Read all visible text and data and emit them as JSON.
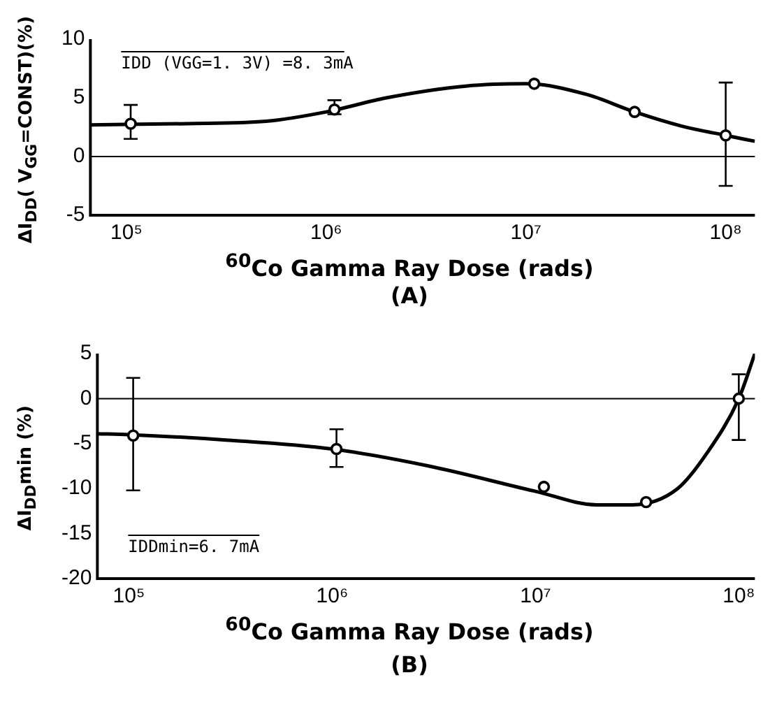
{
  "chart_data": [
    {
      "type": "scatter",
      "ylabel": "ΔI$_{DD}$( V$_{GG}$=CONST)(%)",
      "xlabel": "$^{60}$Co Gamma Ray Dose (rads)",
      "log": "x",
      "grid": false,
      "legend": false,
      "xlim": [
        66000,
        140000000
      ],
      "xticks": [
        {
          "value": 100000,
          "label": "10⁵"
        },
        {
          "value": 1000000,
          "label": "10⁶"
        },
        {
          "value": 10000000,
          "label": "10⁷"
        },
        {
          "value": 100000000,
          "label": "10⁸"
        }
      ],
      "ylim": [
        -5,
        10
      ],
      "yticks": [
        -5,
        0,
        5,
        10
      ],
      "ref_lines": [
        {
          "axis": "y",
          "value": 0,
          "color": "#000000"
        }
      ],
      "annotations": [
        "IDD (VGG=1. 3V) =8. 3mA",
        "(A)"
      ],
      "series": [
        {
          "type": "scatter",
          "color": "#000000",
          "marker": "circle",
          "x": [
            105000,
            1100000,
            11000000,
            35000000,
            100000000
          ],
          "values": [
            2.8,
            4.0,
            6.2,
            3.8,
            1.8
          ],
          "errors": [
            [
              1.5,
              4.4
            ],
            [
              3.6,
              4.8
            ],
            null,
            null,
            [
              -2.5,
              6.3
            ]
          ]
        },
        {
          "type": "line",
          "color": "#000000",
          "marker": "none",
          "line_style": "solid",
          "x": [
            66000,
            200000,
            500000,
            1000000,
            2000000,
            5000000,
            10000000,
            20000000,
            35000000,
            60000000,
            100000000,
            140000000
          ],
          "values": [
            2.7,
            2.8,
            3.0,
            3.8,
            5.0,
            6.0,
            6.2,
            5.3,
            3.8,
            2.6,
            1.8,
            1.3
          ]
        }
      ]
    },
    {
      "type": "scatter",
      "ylabel": "ΔI$_{DD}$min (%)",
      "xlabel": "$^{60}$Co Gamma Ray Dose (rads)",
      "log": "x",
      "grid": false,
      "legend": false,
      "xlim": [
        70000,
        120000000
      ],
      "xticks": [
        {
          "value": 100000,
          "label": "10⁵"
        },
        {
          "value": 1000000,
          "label": "10⁶"
        },
        {
          "value": 10000000,
          "label": "10⁷"
        },
        {
          "value": 100000000,
          "label": "10⁸"
        }
      ],
      "ylim": [
        -20,
        5
      ],
      "yticks": [
        -20,
        -15,
        -10,
        -5,
        0,
        5
      ],
      "ref_lines": [
        {
          "axis": "y",
          "value": 0,
          "color": "#000000"
        }
      ],
      "annotations": [
        "IDDmin=6. 7mA",
        "(B)"
      ],
      "series": [
        {
          "type": "scatter",
          "color": "#000000",
          "marker": "circle",
          "x": [
            105000,
            1050000,
            11000000,
            35000000,
            100000000
          ],
          "values": [
            -4.1,
            -5.6,
            -9.8,
            -11.5,
            0
          ],
          "errors": [
            [
              -10.2,
              2.3
            ],
            [
              -7.6,
              -3.4
            ],
            null,
            null,
            [
              -4.6,
              2.7
            ]
          ]
        },
        {
          "type": "line",
          "color": "#000000",
          "marker": "none",
          "line_style": "solid",
          "x": [
            70000,
            100000,
            300000,
            1000000,
            3000000,
            10000000,
            20000000,
            30000000,
            50000000,
            70000000,
            100000000,
            120000000
          ],
          "values": [
            -3.9,
            -4.0,
            -4.6,
            -5.6,
            -7.5,
            -10.3,
            -11.8,
            -11.8,
            -10,
            -6,
            0,
            5
          ]
        }
      ]
    }
  ]
}
